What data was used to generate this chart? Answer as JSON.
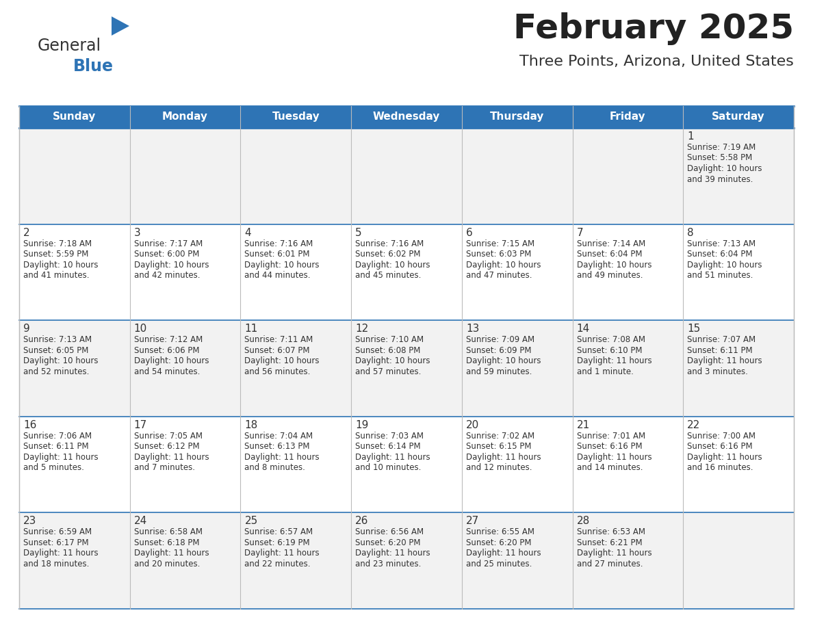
{
  "title": "February 2025",
  "subtitle": "Three Points, Arizona, United States",
  "header_bg_color": "#2E74B5",
  "header_text_color": "#FFFFFF",
  "cell_bg_odd": "#F2F2F2",
  "cell_bg_even": "#FFFFFF",
  "separator_color": "#2E74B5",
  "grid_color": "#BBBBBB",
  "text_color": "#333333",
  "day_number_color": "#333333",
  "days_of_week": [
    "Sunday",
    "Monday",
    "Tuesday",
    "Wednesday",
    "Thursday",
    "Friday",
    "Saturday"
  ],
  "weeks": [
    [
      {
        "day": "",
        "sunrise": "",
        "sunset": "",
        "daylight": ""
      },
      {
        "day": "",
        "sunrise": "",
        "sunset": "",
        "daylight": ""
      },
      {
        "day": "",
        "sunrise": "",
        "sunset": "",
        "daylight": ""
      },
      {
        "day": "",
        "sunrise": "",
        "sunset": "",
        "daylight": ""
      },
      {
        "day": "",
        "sunrise": "",
        "sunset": "",
        "daylight": ""
      },
      {
        "day": "",
        "sunrise": "",
        "sunset": "",
        "daylight": ""
      },
      {
        "day": "1",
        "sunrise": "7:19 AM",
        "sunset": "5:58 PM",
        "daylight": "10 hours\nand 39 minutes."
      }
    ],
    [
      {
        "day": "2",
        "sunrise": "7:18 AM",
        "sunset": "5:59 PM",
        "daylight": "10 hours\nand 41 minutes."
      },
      {
        "day": "3",
        "sunrise": "7:17 AM",
        "sunset": "6:00 PM",
        "daylight": "10 hours\nand 42 minutes."
      },
      {
        "day": "4",
        "sunrise": "7:16 AM",
        "sunset": "6:01 PM",
        "daylight": "10 hours\nand 44 minutes."
      },
      {
        "day": "5",
        "sunrise": "7:16 AM",
        "sunset": "6:02 PM",
        "daylight": "10 hours\nand 45 minutes."
      },
      {
        "day": "6",
        "sunrise": "7:15 AM",
        "sunset": "6:03 PM",
        "daylight": "10 hours\nand 47 minutes."
      },
      {
        "day": "7",
        "sunrise": "7:14 AM",
        "sunset": "6:04 PM",
        "daylight": "10 hours\nand 49 minutes."
      },
      {
        "day": "8",
        "sunrise": "7:13 AM",
        "sunset": "6:04 PM",
        "daylight": "10 hours\nand 51 minutes."
      }
    ],
    [
      {
        "day": "9",
        "sunrise": "7:13 AM",
        "sunset": "6:05 PM",
        "daylight": "10 hours\nand 52 minutes."
      },
      {
        "day": "10",
        "sunrise": "7:12 AM",
        "sunset": "6:06 PM",
        "daylight": "10 hours\nand 54 minutes."
      },
      {
        "day": "11",
        "sunrise": "7:11 AM",
        "sunset": "6:07 PM",
        "daylight": "10 hours\nand 56 minutes."
      },
      {
        "day": "12",
        "sunrise": "7:10 AM",
        "sunset": "6:08 PM",
        "daylight": "10 hours\nand 57 minutes."
      },
      {
        "day": "13",
        "sunrise": "7:09 AM",
        "sunset": "6:09 PM",
        "daylight": "10 hours\nand 59 minutes."
      },
      {
        "day": "14",
        "sunrise": "7:08 AM",
        "sunset": "6:10 PM",
        "daylight": "11 hours\nand 1 minute."
      },
      {
        "day": "15",
        "sunrise": "7:07 AM",
        "sunset": "6:11 PM",
        "daylight": "11 hours\nand 3 minutes."
      }
    ],
    [
      {
        "day": "16",
        "sunrise": "7:06 AM",
        "sunset": "6:11 PM",
        "daylight": "11 hours\nand 5 minutes."
      },
      {
        "day": "17",
        "sunrise": "7:05 AM",
        "sunset": "6:12 PM",
        "daylight": "11 hours\nand 7 minutes."
      },
      {
        "day": "18",
        "sunrise": "7:04 AM",
        "sunset": "6:13 PM",
        "daylight": "11 hours\nand 8 minutes."
      },
      {
        "day": "19",
        "sunrise": "7:03 AM",
        "sunset": "6:14 PM",
        "daylight": "11 hours\nand 10 minutes."
      },
      {
        "day": "20",
        "sunrise": "7:02 AM",
        "sunset": "6:15 PM",
        "daylight": "11 hours\nand 12 minutes."
      },
      {
        "day": "21",
        "sunrise": "7:01 AM",
        "sunset": "6:16 PM",
        "daylight": "11 hours\nand 14 minutes."
      },
      {
        "day": "22",
        "sunrise": "7:00 AM",
        "sunset": "6:16 PM",
        "daylight": "11 hours\nand 16 minutes."
      }
    ],
    [
      {
        "day": "23",
        "sunrise": "6:59 AM",
        "sunset": "6:17 PM",
        "daylight": "11 hours\nand 18 minutes."
      },
      {
        "day": "24",
        "sunrise": "6:58 AM",
        "sunset": "6:18 PM",
        "daylight": "11 hours\nand 20 minutes."
      },
      {
        "day": "25",
        "sunrise": "6:57 AM",
        "sunset": "6:19 PM",
        "daylight": "11 hours\nand 22 minutes."
      },
      {
        "day": "26",
        "sunrise": "6:56 AM",
        "sunset": "6:20 PM",
        "daylight": "11 hours\nand 23 minutes."
      },
      {
        "day": "27",
        "sunrise": "6:55 AM",
        "sunset": "6:20 PM",
        "daylight": "11 hours\nand 25 minutes."
      },
      {
        "day": "28",
        "sunrise": "6:53 AM",
        "sunset": "6:21 PM",
        "daylight": "11 hours\nand 27 minutes."
      },
      {
        "day": "",
        "sunrise": "",
        "sunset": "",
        "daylight": ""
      }
    ]
  ],
  "logo_text1": "General",
  "logo_text2": "Blue",
  "logo_text1_color": "#333333",
  "logo_text2_color": "#2E74B5",
  "logo_triangle_color": "#2E74B5",
  "title_color": "#222222",
  "subtitle_color": "#333333",
  "title_fontsize": 36,
  "subtitle_fontsize": 16,
  "header_fontsize": 11,
  "day_num_fontsize": 11,
  "cell_text_fontsize": 8.5,
  "logo_fontsize": 17
}
